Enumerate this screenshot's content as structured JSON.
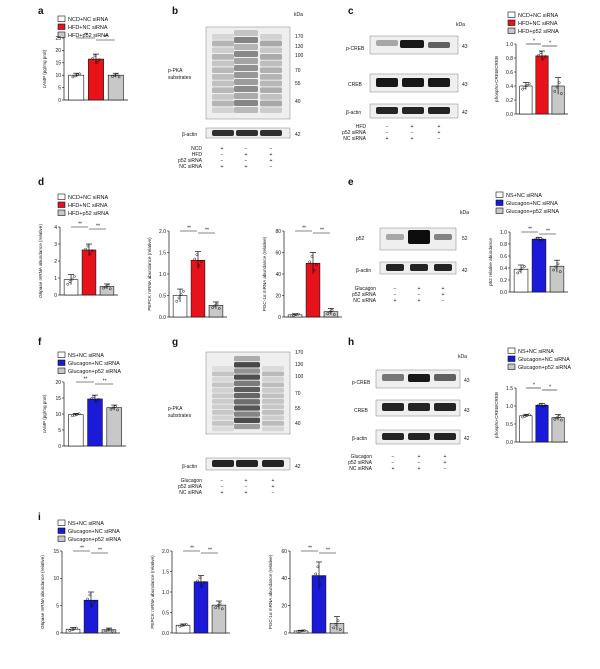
{
  "colors": {
    "ncd": "#ffffff",
    "hfd": "#e8121a",
    "hfd_p52": "#c8c8c8",
    "ns": "#ffffff",
    "glucagon": "#1a1ad8",
    "glucagon_p52": "#c8c8c8",
    "axis": "#111111"
  },
  "panel_letters": {
    "a": "a",
    "b": "b",
    "c": "c",
    "d": "d",
    "e": "e",
    "f": "f",
    "g": "g",
    "h": "h",
    "i": "i"
  },
  "legends": {
    "hfd": [
      "NCD+NC siRNA",
      "HFD+NC siRNA",
      "HFD+p52 siRNA"
    ],
    "glucagon": [
      "NS+NC siRNA",
      "Glucagon+NC siRNA",
      "Glucagon+p52 siRNA"
    ]
  },
  "labels": {
    "kda": "kDa",
    "ppka": [
      "p-PKA",
      "substrates"
    ],
    "bactin": "β-actin",
    "pcreb": "p-CREB",
    "creb": "CREB",
    "p52": "p52",
    "sig": "**",
    "sig1": "*"
  },
  "markers": {
    "b": [
      "170",
      "130",
      "100",
      "70",
      "55",
      "40"
    ],
    "b_actin": "42",
    "c": [
      "43",
      "43",
      "42"
    ],
    "e": [
      "52",
      "42"
    ],
    "g": [
      "170",
      "130",
      "100",
      "70",
      "55",
      "40"
    ],
    "g_actin": "42",
    "h": [
      "43",
      "43",
      "42"
    ]
  },
  "treatment_rows": {
    "b": [
      {
        "label": "NCD",
        "v": [
          "+",
          "−",
          "−"
        ]
      },
      {
        "label": "HFD",
        "v": [
          "−",
          "+",
          "+"
        ]
      },
      {
        "label": "p52 siRNA",
        "v": [
          "−",
          "−",
          "+"
        ]
      },
      {
        "label": "NC siRNA",
        "v": [
          "+",
          "+",
          "−"
        ]
      }
    ],
    "c": [
      {
        "label": "HFD",
        "v": [
          "−",
          "+",
          "+"
        ]
      },
      {
        "label": "p52 siRNA",
        "v": [
          "−",
          "−",
          "+"
        ]
      },
      {
        "label": "NC siRNA",
        "v": [
          "+",
          "+",
          "−"
        ]
      }
    ],
    "e": [
      {
        "label": "Glucagon",
        "v": [
          "−",
          "+",
          "+"
        ]
      },
      {
        "label": "p52 siRNA",
        "v": [
          "−",
          "−",
          "+"
        ]
      },
      {
        "label": "NC siRNA",
        "v": [
          "+",
          "+",
          "−"
        ]
      }
    ],
    "g": [
      {
        "label": "Glucagon",
        "v": [
          "−",
          "+",
          "+"
        ]
      },
      {
        "label": "p52 siRNA",
        "v": [
          "−",
          "−",
          "+"
        ]
      },
      {
        "label": "NC siRNA",
        "v": [
          "+",
          "+",
          "−"
        ]
      }
    ],
    "h": [
      {
        "label": "Glucagon",
        "v": [
          "−",
          "+",
          "+"
        ]
      },
      {
        "label": "p52 siRNA",
        "v": [
          "−",
          "−",
          "+"
        ]
      },
      {
        "label": "NC siRNA",
        "v": [
          "+",
          "+",
          "−"
        ]
      }
    ]
  },
  "chart_data": [
    {
      "id": "a",
      "type": "bar",
      "ylabel": "cAMP (pg/mg prot)",
      "ylim": [
        0,
        25
      ],
      "yticks": [
        "0",
        "5",
        "10",
        "15",
        "20",
        "25"
      ],
      "categories": [
        "NCD+NC siRNA",
        "HFD+NC siRNA",
        "HFD+p52 siRNA"
      ],
      "values": [
        10,
        16.5,
        10
      ],
      "errors": [
        0.8,
        2,
        0.8
      ],
      "sig": [
        "**",
        "**"
      ]
    },
    {
      "id": "c",
      "type": "bar",
      "ylabel": "phospho-CREB/CREB",
      "ylim": [
        0,
        1.0
      ],
      "yticks": [
        "0.0",
        "0.2",
        "0.4",
        "0.6",
        "0.8",
        "1.0"
      ],
      "categories": [
        "NCD+NC siRNA",
        "HFD+NC siRNA",
        "HFD+p52 siRNA"
      ],
      "values": [
        0.4,
        0.83,
        0.4
      ],
      "errors": [
        0.05,
        0.07,
        0.12
      ],
      "sig": [
        "*",
        "*"
      ]
    },
    {
      "id": "d1",
      "type": "bar",
      "ylabel": "G6pase mRNA abundance (relative)",
      "ylim": [
        0,
        4
      ],
      "yticks": [
        "0",
        "1",
        "2",
        "3",
        "4"
      ],
      "categories": [
        "NCD+NC siRNA",
        "HFD+NC siRNA",
        "HFD+p52 siRNA"
      ],
      "values": [
        0.9,
        2.65,
        0.5
      ],
      "errors": [
        0.3,
        0.35,
        0.15
      ],
      "sig": [
        "**",
        "**"
      ]
    },
    {
      "id": "d2",
      "type": "bar",
      "ylabel": "PEPCK mRNA abundance (relative)",
      "ylim": [
        0,
        2.0
      ],
      "yticks": [
        "0.0",
        "0.5",
        "1.0",
        "1.5",
        "2.0"
      ],
      "categories": [
        "NCD+NC siRNA",
        "HFD+NC siRNA",
        "HFD+p52 siRNA"
      ],
      "values": [
        0.5,
        1.32,
        0.27
      ],
      "errors": [
        0.15,
        0.2,
        0.08
      ],
      "sig": [
        "**",
        "**"
      ]
    },
    {
      "id": "d3",
      "type": "bar",
      "ylabel": "PGC-1α mRNA abundance (relative)",
      "ylim": [
        0,
        80
      ],
      "yticks": [
        "0",
        "20",
        "40",
        "60",
        "80"
      ],
      "categories": [
        "NCD+NC siRNA",
        "HFD+NC siRNA",
        "HFD+p52 siRNA"
      ],
      "values": [
        2,
        50,
        5
      ],
      "errors": [
        1,
        10,
        3
      ],
      "sig": [
        "**",
        "**"
      ]
    },
    {
      "id": "e",
      "type": "bar",
      "ylabel": "p52 relative abundance",
      "ylim": [
        0,
        1.0
      ],
      "yticks": [
        "0.0",
        "0.2",
        "0.4",
        "0.6",
        "0.8",
        "1.0"
      ],
      "categories": [
        "NS+NC siRNA",
        "Glucagon+NC siRNA",
        "Glucagon+p52 siRNA"
      ],
      "values": [
        0.38,
        0.88,
        0.43
      ],
      "errors": [
        0.07,
        0.03,
        0.1
      ],
      "sig": [
        "**",
        "**"
      ]
    },
    {
      "id": "f",
      "type": "bar",
      "ylabel": "cAMP (pg/mg prot)",
      "ylim": [
        0,
        20
      ],
      "yticks": [
        "0",
        "5",
        "10",
        "15",
        "20"
      ],
      "categories": [
        "NS+NC siRNA",
        "Glucagon+NC siRNA",
        "Glucagon+p52 siRNA"
      ],
      "values": [
        9.8,
        14.7,
        12
      ],
      "errors": [
        0.4,
        1.2,
        0.8
      ],
      "sig": [
        "**",
        "**"
      ]
    },
    {
      "id": "h",
      "type": "bar",
      "ylabel": "phospho-CREB/CREB",
      "ylim": [
        0,
        1.5
      ],
      "yticks": [
        "0.0",
        "0.5",
        "1.0",
        "1.5"
      ],
      "categories": [
        "NS+NC siRNA",
        "Glucagon+NC siRNA",
        "Glucagon+p52 siRNA"
      ],
      "values": [
        0.73,
        1.02,
        0.68
      ],
      "errors": [
        0.04,
        0.05,
        0.08
      ],
      "sig": [
        "*",
        "*"
      ]
    },
    {
      "id": "i1",
      "type": "bar",
      "ylabel": "G6pase mRNA abundance (relative)",
      "ylim": [
        0,
        15
      ],
      "yticks": [
        "0",
        "5",
        "10",
        "15"
      ],
      "categories": [
        "NS+NC siRNA",
        "Glucagon+NC siRNA",
        "Glucagon+p52 siRNA"
      ],
      "values": [
        0.7,
        6,
        0.6
      ],
      "errors": [
        0.3,
        1.5,
        0.3
      ],
      "sig": [
        "**",
        "**"
      ]
    },
    {
      "id": "i2",
      "type": "bar",
      "ylabel": "PEPCK mRNA abundance (relative)",
      "ylim": [
        0,
        2.0
      ],
      "yticks": [
        "0.0",
        "0.5",
        "1.0",
        "1.5",
        "2.0"
      ],
      "categories": [
        "NS+NC siRNA",
        "Glucagon+NC siRNA",
        "Glucagon+p52 siRNA"
      ],
      "values": [
        0.19,
        1.25,
        0.68
      ],
      "errors": [
        0.03,
        0.15,
        0.1
      ],
      "sig": [
        "**",
        "**"
      ]
    },
    {
      "id": "i3",
      "type": "bar",
      "ylabel": "PGC-1α mRNA abundance (relative)",
      "ylim": [
        0,
        60
      ],
      "yticks": [
        "0",
        "20",
        "40",
        "60"
      ],
      "categories": [
        "NS+NC siRNA",
        "Glucagon+NC siRNA",
        "Glucagon+p52 siRNA"
      ],
      "values": [
        1.5,
        42,
        7
      ],
      "errors": [
        0.5,
        10,
        5
      ],
      "sig": [
        "**",
        "**"
      ]
    }
  ]
}
